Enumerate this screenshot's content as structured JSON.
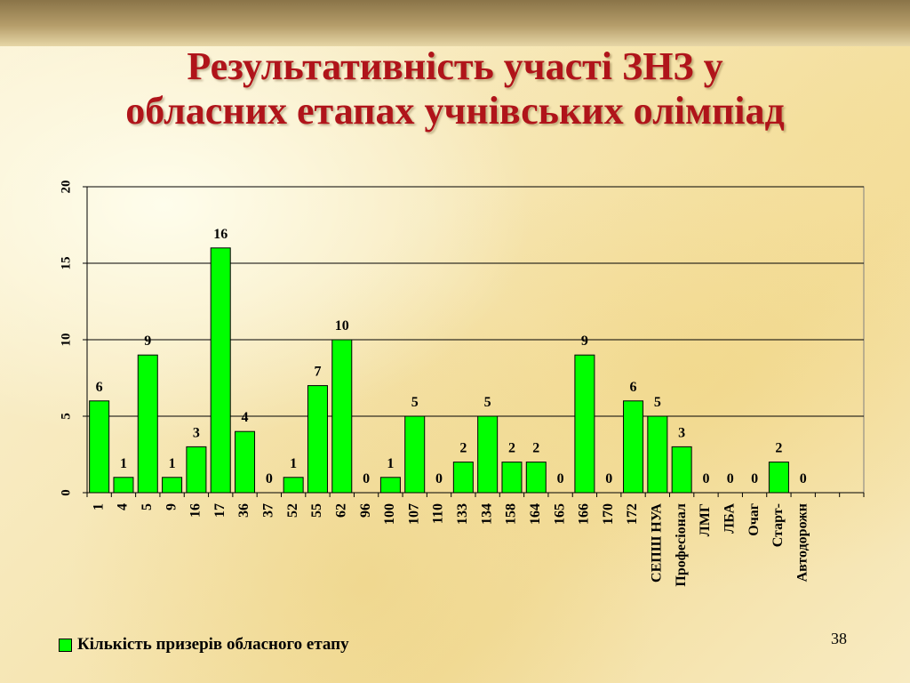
{
  "slide": {
    "title_line1": "Результативність участі ЗНЗ у",
    "title_line2": "обласних етапах учнівських олімпіад",
    "page_number": "38"
  },
  "chart_data": {
    "type": "bar",
    "title": "",
    "xlabel": "",
    "ylabel": "",
    "categories": [
      "1",
      "4",
      "5",
      "9",
      "16",
      "17",
      "36",
      "37",
      "52",
      "55",
      "62",
      "96",
      "100",
      "107",
      "110",
      "133",
      "134",
      "158",
      "164",
      "165",
      "166",
      "170",
      "172",
      "СЕПШ НУА",
      "Професіонал",
      "ЛМГ",
      "ЛБА",
      "Очаг",
      "Старт-",
      "Автодорожн"
    ],
    "series": [
      {
        "name": "Кількість призерів обласного  етапу",
        "values": [
          6,
          1,
          9,
          1,
          3,
          16,
          4,
          0,
          1,
          7,
          10,
          0,
          1,
          5,
          0,
          2,
          5,
          2,
          2,
          0,
          9,
          0,
          6,
          5,
          3,
          0,
          0,
          0,
          2,
          0
        ],
        "color": "#00ff00"
      }
    ],
    "ylim": [
      0,
      20
    ],
    "yticks": [
      "0",
      "5",
      "10",
      "15",
      "20"
    ],
    "grid": true,
    "legend_position": "bottom-left",
    "data_labels": true
  }
}
